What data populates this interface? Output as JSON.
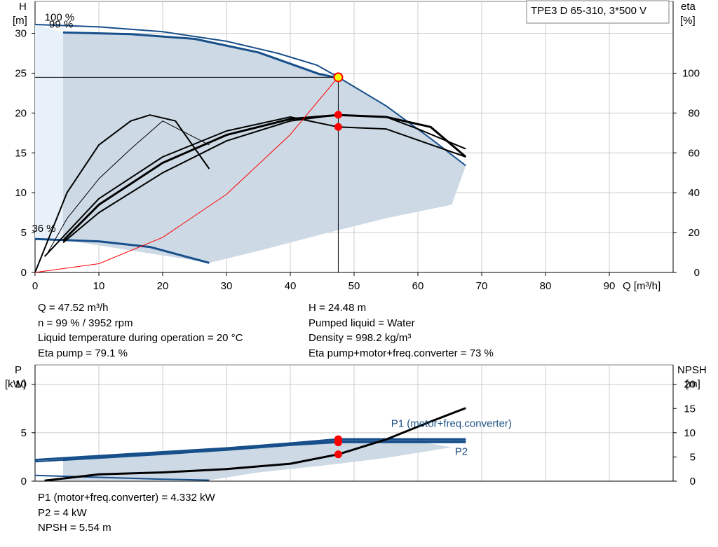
{
  "pump_label": "TPE3 D 65-310, 3*500 V",
  "chart_data": [
    {
      "type": "line",
      "name": "head-efficiency",
      "xlabel": "Q [m³/h]",
      "ylabel_left_line1": "H",
      "ylabel_left_line2": "[m]",
      "ylabel_right_line1": "eta",
      "ylabel_right_line2": "[%]",
      "xlim": [
        0,
        100
      ],
      "ylim": [
        0,
        34
      ],
      "ylim_right": [
        0,
        136
      ],
      "x_ticks": [
        0,
        10,
        20,
        30,
        40,
        50,
        60,
        70,
        80,
        90
      ],
      "y_ticks": [
        0,
        5,
        10,
        15,
        20,
        25,
        30
      ],
      "y_right_ticks": [
        0,
        20,
        40,
        60,
        80,
        100
      ],
      "grid": true,
      "curve_labels": [
        {
          "text": "100 %",
          "x": 1.5,
          "y": 31.6
        },
        {
          "text": "99 %",
          "x": 2.2,
          "y": 30.7
        },
        {
          "text": "36 %",
          "x": -0.5,
          "y": 5.1
        }
      ],
      "operating_area": [
        [
          4.4,
          30.1
        ],
        [
          15,
          29.9
        ],
        [
          25,
          29.3
        ],
        [
          35,
          27.5
        ],
        [
          44.5,
          24.9
        ],
        [
          47.5,
          24.5
        ],
        [
          55,
          20.9
        ],
        [
          62,
          16.8
        ],
        [
          67.5,
          13.4
        ],
        [
          65.3,
          8.5
        ],
        [
          55,
          6.8
        ],
        [
          45,
          4.8
        ],
        [
          35,
          2.7
        ],
        [
          27.3,
          1.2
        ],
        [
          4.4,
          4.1
        ]
      ],
      "operating_area_unused": [
        [
          0,
          31.1
        ],
        [
          4.4,
          30.1
        ],
        [
          4.4,
          4.1
        ],
        [
          0,
          4.2
        ]
      ],
      "series": [
        {
          "role": "head",
          "values": [
            [
              0,
              31.1
            ],
            [
              10,
              30.8
            ],
            [
              20,
              30.2
            ],
            [
              30,
              29.0
            ],
            [
              38,
              27.5
            ],
            [
              44.2,
              26.0
            ],
            [
              47.5,
              24.5
            ],
            [
              55,
              20.9
            ],
            [
              62,
              16.8
            ],
            [
              67.5,
              13.4
            ]
          ]
        },
        {
          "role": "head",
          "values": [
            [
              4.4,
              30.1
            ],
            [
              15,
              29.9
            ],
            [
              25,
              29.3
            ],
            [
              35,
              27.6
            ],
            [
              44.5,
              24.9
            ],
            [
              47.5,
              24.4
            ]
          ]
        },
        {
          "role": "head",
          "values": [
            [
              0,
              4.2
            ],
            [
              10,
              3.9
            ],
            [
              18,
              3.2
            ],
            [
              27.3,
              1.2
            ]
          ]
        },
        {
          "role": "eta",
          "values": [
            [
              2,
              10
            ],
            [
              5,
              27
            ],
            [
              10,
              47
            ],
            [
              15,
              62
            ],
            [
              20,
              76
            ],
            [
              27.3,
              64
            ]
          ]
        },
        {
          "role": "eta",
          "values": [
            [
              4.4,
              15
            ],
            [
              10,
              30
            ],
            [
              20,
              50
            ],
            [
              30,
              66
            ],
            [
              40,
              76
            ],
            [
              47.5,
              79.1
            ],
            [
              55,
              78
            ],
            [
              60,
              72
            ],
            [
              67.5,
              62
            ]
          ]
        },
        {
          "role": "eta",
          "values": [
            [
              0,
              0
            ],
            [
              5,
              40
            ],
            [
              10,
              64
            ],
            [
              15,
              76
            ],
            [
              18,
              79
            ],
            [
              22,
              76
            ],
            [
              27.3,
              52
            ]
          ]
        },
        {
          "role": "eta",
          "values": [
            [
              4.4,
              16
            ],
            [
              10,
              34
            ],
            [
              20,
              55
            ],
            [
              30,
              69
            ],
            [
              40,
              77
            ],
            [
              47.5,
              79
            ],
            [
              55,
              78
            ],
            [
              62,
              73
            ],
            [
              67.5,
              58
            ]
          ]
        },
        {
          "role": "eta",
          "values": [
            [
              1.5,
              8
            ],
            [
              10,
              37
            ],
            [
              20,
              58
            ],
            [
              30,
              71
            ],
            [
              40,
              78
            ],
            [
              47.5,
              73
            ],
            [
              55,
              72
            ],
            [
              67.5,
              58
            ]
          ]
        },
        {
          "role": "system",
          "values": [
            [
              0,
              0
            ],
            [
              10,
              1.1
            ],
            [
              20,
              4.4
            ],
            [
              30,
              9.8
            ],
            [
              40,
              17.3
            ],
            [
              47.5,
              24.5
            ]
          ]
        }
      ],
      "operating_point": {
        "Q": 47.52,
        "H": 24.48,
        "eta_points": [
          79.1,
          73
        ]
      }
    },
    {
      "type": "line",
      "name": "power-npsh",
      "ylabel_left_line1": "P",
      "ylabel_left_line2": "[kW]",
      "ylabel_right_line1": "NPSH",
      "ylabel_right_line2": "[m]",
      "xlim": [
        0,
        100
      ],
      "ylim": [
        0,
        12
      ],
      "ylim_right": [
        0,
        24
      ],
      "y_ticks": [
        0,
        5,
        10
      ],
      "y_right_ticks": [
        0,
        5,
        10,
        15,
        20
      ],
      "grid": true,
      "series_labels": [
        {
          "text": "P1 (motor+freq.converter)",
          "x": 55.8,
          "y": 5.6
        },
        {
          "text": "P2",
          "x": 65.8,
          "y": 2.7
        }
      ],
      "operating_area": [
        [
          4.4,
          2.3
        ],
        [
          20,
          2.9
        ],
        [
          35,
          3.6
        ],
        [
          47.5,
          4.1
        ],
        [
          60,
          4.1
        ],
        [
          65.3,
          3.5
        ],
        [
          55,
          2.4
        ],
        [
          45,
          1.6
        ],
        [
          35,
          0.9
        ],
        [
          27.3,
          0.1
        ],
        [
          4.4,
          0.1
        ]
      ],
      "series": [
        {
          "role": "P1",
          "values": [
            [
              0,
              2.2
            ],
            [
              10,
              2.6
            ],
            [
              20,
              3.0
            ],
            [
              30,
              3.4
            ],
            [
              40,
              3.9
            ],
            [
              47.5,
              4.33
            ],
            [
              67.5,
              4.33
            ]
          ]
        },
        {
          "role": "P2",
          "values": [
            [
              0,
              2.0
            ],
            [
              10,
              2.4
            ],
            [
              20,
              2.8
            ],
            [
              30,
              3.2
            ],
            [
              40,
              3.7
            ],
            [
              47.5,
              4.0
            ],
            [
              67.5,
              4.0
            ]
          ]
        },
        {
          "role": "P",
          "values": [
            [
              4.4,
              2.2
            ],
            [
              20,
              2.8
            ],
            [
              35,
              3.5
            ],
            [
              47.5,
              4.1
            ],
            [
              67.5,
              4.1
            ]
          ]
        },
        {
          "role": "P",
          "values": [
            [
              0,
              0.6
            ],
            [
              10,
              0.4
            ],
            [
              20,
              0.2
            ],
            [
              27.3,
              0.1
            ]
          ]
        },
        {
          "role": "NPSH",
          "values": [
            [
              1.5,
              0.1
            ],
            [
              10,
              1.4
            ],
            [
              20,
              1.8
            ],
            [
              30,
              2.5
            ],
            [
              40,
              3.6
            ],
            [
              47.5,
              5.54
            ],
            [
              55,
              8.6
            ],
            [
              62,
              12.3
            ],
            [
              67.5,
              15.1
            ]
          ]
        }
      ],
      "operating_point": {
        "Q": 47.52,
        "P1": 4.332,
        "P2": 4.0,
        "NPSH": 5.54
      }
    }
  ],
  "info_top_left": [
    "Q = 47.52 m³/h",
    "n = 99 % / 3952 rpm",
    "Liquid temperature during operation = 20 °C",
    "Eta pump = 79.1 %"
  ],
  "info_top_right": [
    "H = 24.48 m",
    "Pumped liquid = Water",
    "Density = 998.2 kg/m³",
    "Eta pump+motor+freq.converter = 73 %"
  ],
  "info_bottom": [
    "P1 (motor+freq.converter) = 4.332 kW",
    "P2 = 4 kW",
    "NPSH = 5.54 m"
  ],
  "colors": {
    "grid": "#cccccc",
    "area": "#cdd9e5",
    "area_unused": "#e8f1fa",
    "curve_blue": "#174f8b",
    "label_blue": "#1c4f86",
    "curve_black": "#000000",
    "system_red": "#ff0000",
    "point_red": "#ff0000",
    "op_point_fill": "#ffff00"
  }
}
